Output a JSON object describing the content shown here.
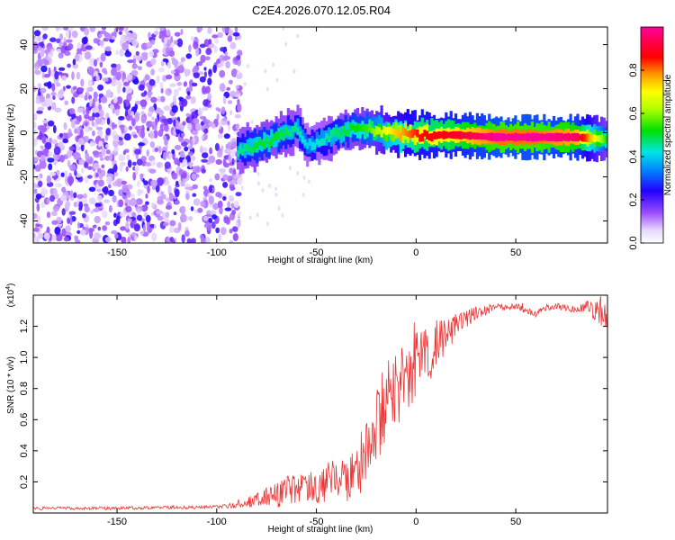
{
  "title": "C2E4.2026.070.12.05.R04",
  "chart_data": [
    {
      "type": "heatmap",
      "xlabel": "Height of straight line (km)",
      "ylabel": "Frequency (Hz)",
      "xlim": [
        -192,
        96
      ],
      "ylim": [
        -50,
        48
      ],
      "x_ticks": [
        "-150",
        "-100",
        "-50",
        "0",
        "50"
      ],
      "x_tick_values": [
        -150,
        -100,
        -50,
        0,
        50
      ],
      "y_ticks": [
        "40",
        "20",
        "0",
        "-20",
        "-40"
      ],
      "y_tick_values": [
        40,
        20,
        0,
        -20,
        -40
      ],
      "colorbar": {
        "label": "Normalized spectral amplitude",
        "ticks": [
          "0.0",
          "0.2",
          "0.4",
          "0.6",
          "0.8"
        ],
        "tick_values": [
          0.0,
          0.2,
          0.4,
          0.6,
          0.8
        ],
        "range": [
          0,
          1
        ]
      },
      "noise_region_x": [
        -192,
        -90
      ],
      "signal_band": [
        {
          "x": -90,
          "freq": -8,
          "amp": 0.45
        },
        {
          "x": -80,
          "freq": -6,
          "amp": 0.5
        },
        {
          "x": -70,
          "freq": -2,
          "amp": 0.5
        },
        {
          "x": -60,
          "freq": 2,
          "amp": 0.45
        },
        {
          "x": -55,
          "freq": -6,
          "amp": 0.4
        },
        {
          "x": -45,
          "freq": -2,
          "amp": 0.45
        },
        {
          "x": -35,
          "freq": 1,
          "amp": 0.5
        },
        {
          "x": -25,
          "freq": 2,
          "amp": 0.55
        },
        {
          "x": -15,
          "freq": 0,
          "amp": 0.7
        },
        {
          "x": 0,
          "freq": -1,
          "amp": 0.85
        },
        {
          "x": 20,
          "freq": -1,
          "amp": 0.9
        },
        {
          "x": 40,
          "freq": -2,
          "amp": 1.0
        },
        {
          "x": 60,
          "freq": -2,
          "amp": 1.0
        },
        {
          "x": 80,
          "freq": -2,
          "amp": 0.95
        },
        {
          "x": 96,
          "freq": -3,
          "amp": 0.5
        }
      ]
    },
    {
      "type": "line",
      "xlabel": "Height of straight line (km)",
      "ylabel": "SNR (10 * v/v)",
      "scale_label": "(x10",
      "scale_exponent": "4",
      "scale_close": ")",
      "xlim": [
        -192,
        96
      ],
      "ylim": [
        0,
        1.4
      ],
      "x_ticks": [
        "-150",
        "-100",
        "-50",
        "0",
        "50"
      ],
      "x_tick_values": [
        -150,
        -100,
        -50,
        0,
        50
      ],
      "y_ticks": [
        "0.2",
        "0.4",
        "0.6",
        "0.8",
        "1.0",
        "1.2"
      ],
      "y_tick_values": [
        0.2,
        0.4,
        0.6,
        0.8,
        1.0,
        1.2
      ],
      "series": [
        {
          "name": "SNR",
          "color": "#ee3333",
          "x": [
            -192,
            -170,
            -150,
            -130,
            -110,
            -100,
            -90,
            -85,
            -80,
            -75,
            -70,
            -65,
            -60,
            -55,
            -50,
            -45,
            -40,
            -35,
            -30,
            -25,
            -20,
            -15,
            -10,
            -5,
            0,
            5,
            10,
            15,
            20,
            25,
            30,
            35,
            40,
            45,
            50,
            55,
            60,
            65,
            70,
            75,
            80,
            85,
            90,
            96
          ],
          "y": [
            0.03,
            0.03,
            0.03,
            0.035,
            0.035,
            0.04,
            0.05,
            0.06,
            0.09,
            0.12,
            0.13,
            0.16,
            0.15,
            0.18,
            0.17,
            0.2,
            0.2,
            0.22,
            0.28,
            0.38,
            0.5,
            0.7,
            0.82,
            0.85,
            0.95,
            1.0,
            1.08,
            1.14,
            1.2,
            1.24,
            1.28,
            1.3,
            1.33,
            1.32,
            1.33,
            1.3,
            1.28,
            1.32,
            1.33,
            1.32,
            1.3,
            1.33,
            1.31,
            1.26
          ]
        }
      ],
      "noise_amplitude": [
        0.01,
        0.01,
        0.01,
        0.01,
        0.01,
        0.01,
        0.02,
        0.03,
        0.05,
        0.08,
        0.1,
        0.12,
        0.12,
        0.12,
        0.12,
        0.14,
        0.14,
        0.15,
        0.18,
        0.22,
        0.28,
        0.3,
        0.28,
        0.25,
        0.22,
        0.2,
        0.16,
        0.12,
        0.08,
        0.06,
        0.05,
        0.03,
        0.02,
        0.02,
        0.02,
        0.02,
        0.02,
        0.02,
        0.02,
        0.02,
        0.02,
        0.03,
        0.08,
        0.08
      ]
    }
  ]
}
